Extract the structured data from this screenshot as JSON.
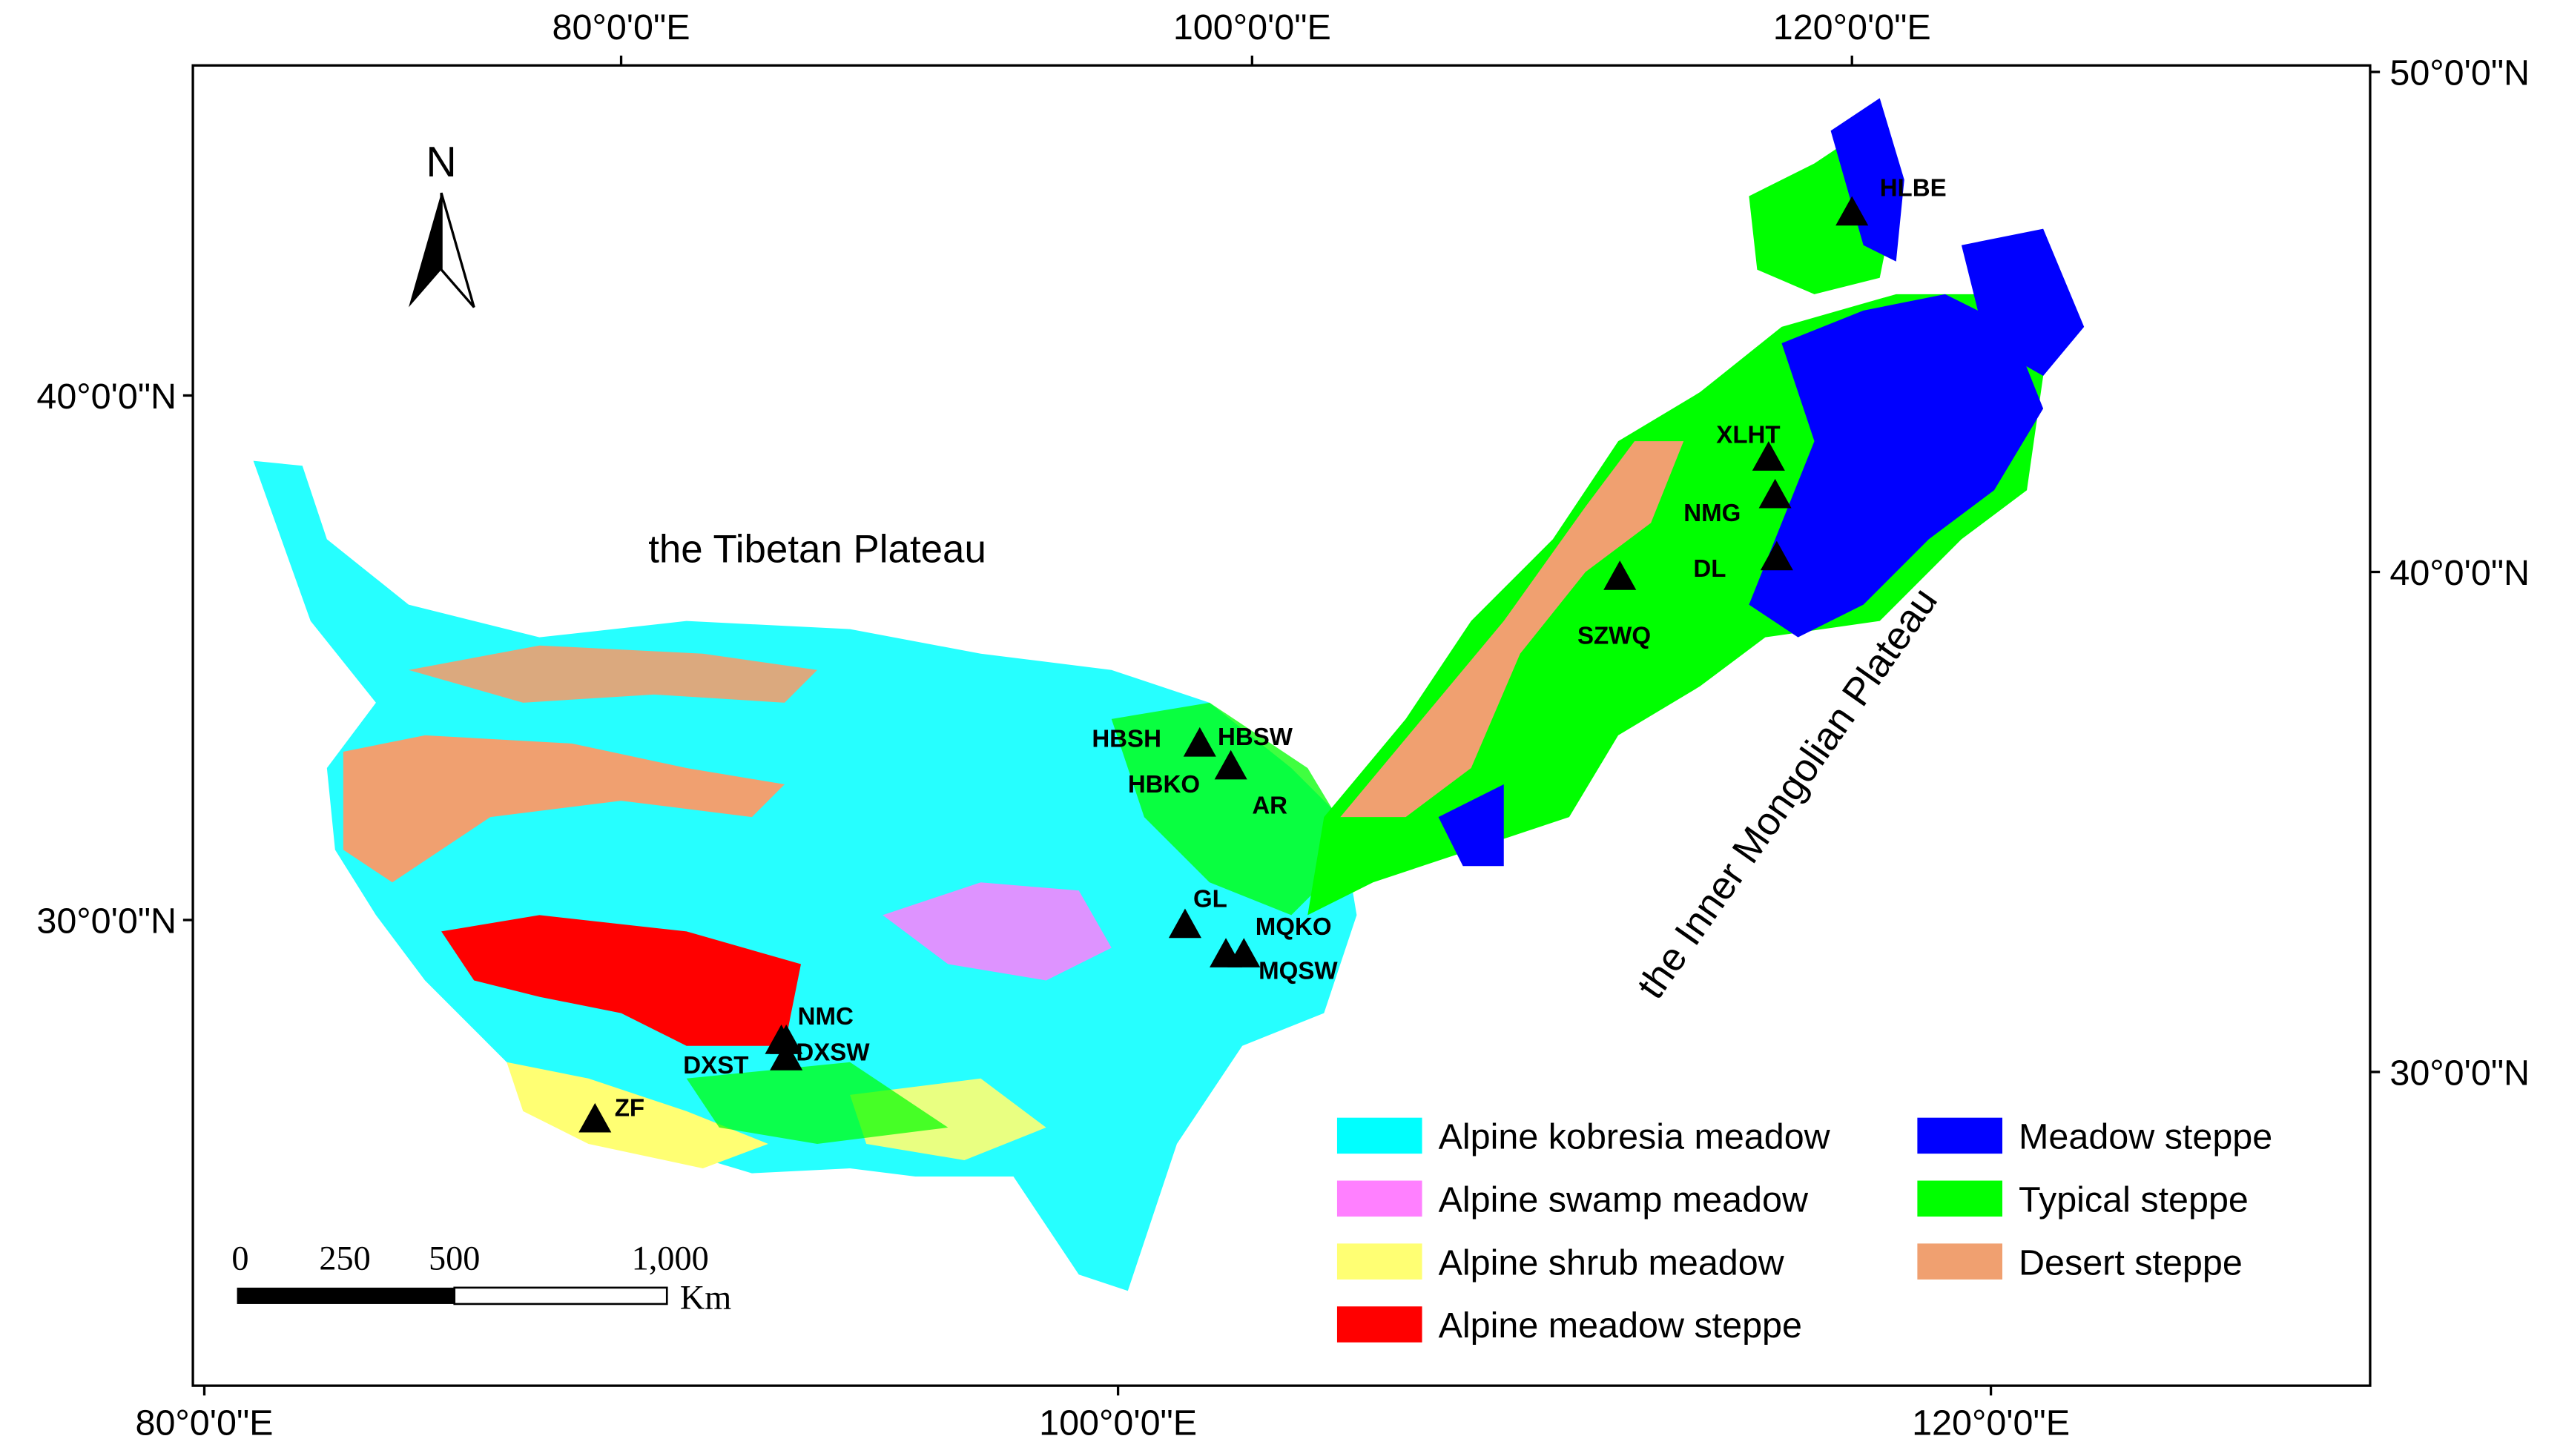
{
  "top_axis_labels": [
    "80°0'0\"E",
    "100°0'0\"E",
    "120°0'0\"E"
  ],
  "bottom_axis_labels": [
    "80°0'0\"E",
    "100°0'0\"E",
    "120°0'0\"E"
  ],
  "left_axis_labels": [
    "40°0'0\"N",
    "30°0'0\"N"
  ],
  "right_axis_labels": [
    "50°0'0\"N",
    "40°0'0\"N",
    "30°0'0\"N"
  ],
  "north_label": "N",
  "region_labels": [
    "the Tibetan Plateau",
    "the Inner Mongolian Plateau"
  ],
  "sites": [
    {
      "label": "HLBE"
    },
    {
      "label": "XLHT"
    },
    {
      "label": "NMG"
    },
    {
      "label": "DL"
    },
    {
      "label": "SZWQ"
    },
    {
      "label": "HBSH"
    },
    {
      "label": "HBSW"
    },
    {
      "label": "HBKO"
    },
    {
      "label": "AR"
    },
    {
      "label": "GL"
    },
    {
      "label": "MQKO"
    },
    {
      "label": "MQSW"
    },
    {
      "label": "NMC"
    },
    {
      "label": "DXSW"
    },
    {
      "label": "DXST"
    },
    {
      "label": "ZF"
    }
  ],
  "legend": [
    {
      "label": "Alpine kobresia meadow",
      "color": "#00ffff"
    },
    {
      "label": "Alpine swamp meadow",
      "color": "#ff80ff"
    },
    {
      "label": "Alpine shrub meadow",
      "color": "#ffff73"
    },
    {
      "label": "Alpine meadow steppe",
      "color": "#ff0000"
    },
    {
      "label": "Meadow steppe",
      "color": "#0000ff"
    },
    {
      "label": "Typical steppe",
      "color": "#00ff00"
    },
    {
      "label": "Desert steppe",
      "color": "#f0a070"
    }
  ],
  "scale_bar": {
    "labels": [
      "0",
      "250",
      "500",
      "1,000"
    ],
    "unit": "Km"
  }
}
